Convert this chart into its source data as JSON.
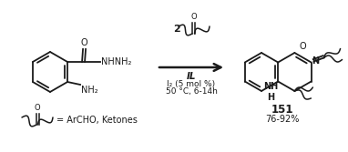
{
  "bg_color": "#ffffff",
  "text_color": "#1a1a1a",
  "arrow_color": "#1a1a1a",
  "label_2": "2",
  "label_IL": "IL",
  "label_I2": "I₂ (5 mol %)",
  "label_temp": "50 °C, 6-14h",
  "label_151": "151",
  "label_yield": "76-92%",
  "label_eq": "= ArCHO, Ketones",
  "label_NHNH2": "NHNH₂",
  "label_NH2": "NH₂",
  "label_NH": "NH",
  "label_N": "N",
  "label_O": "O",
  "label_H": "H"
}
